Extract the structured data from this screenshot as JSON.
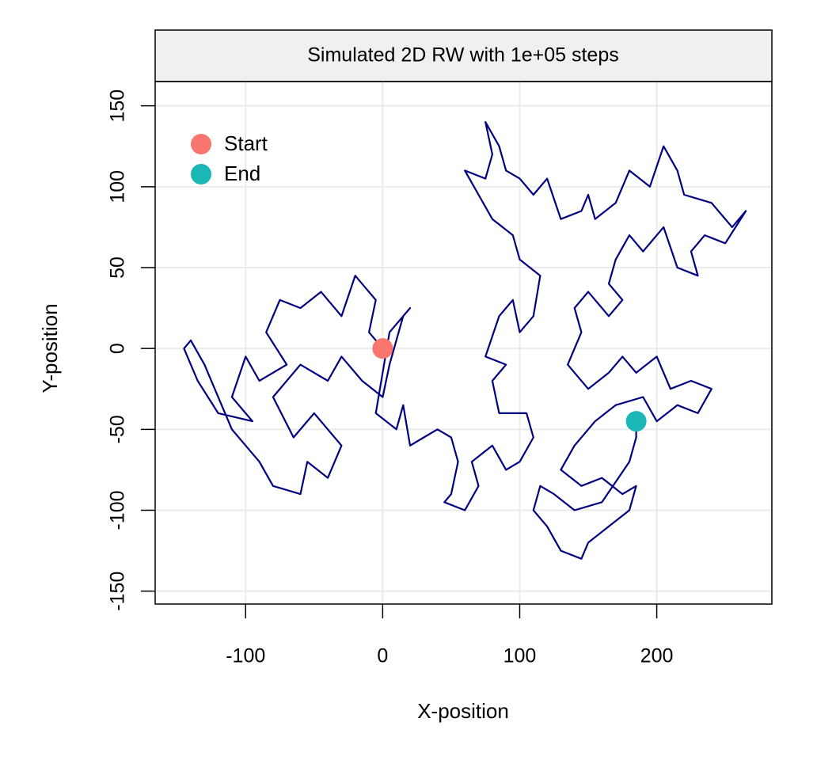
{
  "chart_data": {
    "type": "line",
    "title": "Simulated 2D RW with 1e+05 steps",
    "xlabel": "X-position",
    "ylabel": "Y-position",
    "xlim": [
      -166,
      284
    ],
    "ylim": [
      -158,
      165
    ],
    "xticks": [
      -100,
      0,
      100,
      200
    ],
    "yticks": [
      -150,
      -100,
      -50,
      0,
      50,
      100,
      150
    ],
    "grid": true,
    "legend": "top-left",
    "series": [
      {
        "color": "#000080",
        "x": [
          0,
          -10,
          -5,
          -20,
          -30,
          -45,
          -60,
          -75,
          -85,
          -70,
          -90,
          -100,
          -110,
          -95,
          -120,
          -135,
          -145,
          -140,
          -130,
          -110,
          -90,
          -80,
          -60,
          -55,
          -40,
          -30,
          -50,
          -65,
          -80,
          -60,
          -40,
          -30,
          -15,
          0,
          5,
          15,
          20,
          5,
          -5,
          10,
          15,
          20,
          30,
          40,
          50,
          55,
          50,
          45,
          60,
          70,
          65,
          80,
          90,
          100,
          110,
          105,
          85,
          80,
          90,
          75,
          85,
          95,
          100,
          110,
          115,
          100,
          95,
          80,
          70,
          60,
          75,
          80,
          75,
          85,
          90,
          100,
          110,
          120,
          130,
          145,
          150,
          155,
          170,
          180,
          195,
          205,
          215,
          220,
          240,
          255,
          265,
          250,
          235,
          225,
          230,
          215,
          205,
          190,
          180,
          170,
          165,
          175,
          165,
          150,
          140,
          145,
          135,
          150,
          165,
          175,
          185,
          200,
          210,
          225,
          240,
          230,
          215,
          200,
          190,
          170,
          155,
          140,
          130,
          145,
          160,
          175,
          185,
          180,
          165,
          150,
          145,
          130,
          120,
          110,
          115,
          125,
          140,
          160,
          180,
          185,
          185
        ],
        "y": [
          0,
          10,
          30,
          45,
          20,
          35,
          25,
          30,
          10,
          -10,
          -20,
          -5,
          -30,
          -45,
          -40,
          -20,
          0,
          5,
          -10,
          -50,
          -70,
          -85,
          -90,
          -70,
          -80,
          -60,
          -40,
          -55,
          -30,
          -10,
          -20,
          -5,
          -20,
          -30,
          -10,
          20,
          25,
          10,
          -40,
          -50,
          -35,
          -60,
          -55,
          -50,
          -55,
          -70,
          -90,
          -95,
          -100,
          -85,
          -70,
          -60,
          -75,
          -70,
          -55,
          -40,
          -40,
          -20,
          -10,
          -5,
          20,
          30,
          10,
          20,
          45,
          55,
          70,
          80,
          95,
          110,
          105,
          120,
          140,
          125,
          110,
          105,
          95,
          105,
          80,
          85,
          95,
          80,
          90,
          110,
          100,
          125,
          110,
          95,
          90,
          75,
          85,
          65,
          70,
          60,
          45,
          50,
          75,
          60,
          70,
          55,
          40,
          30,
          20,
          35,
          25,
          10,
          -10,
          -25,
          -15,
          -5,
          -15,
          -5,
          -25,
          -20,
          -25,
          -40,
          -35,
          -45,
          -30,
          -35,
          -45,
          -60,
          -75,
          -85,
          -80,
          -90,
          -85,
          -100,
          -110,
          -120,
          -130,
          -125,
          -110,
          -100,
          -85,
          -90,
          -100,
          -95,
          -70,
          -55,
          -45
        ]
      }
    ],
    "points": [
      {
        "name": "Start",
        "color": "#f8766d",
        "x": [
          0
        ],
        "y": [
          0
        ]
      },
      {
        "name": "End",
        "color": "#1bb6b6",
        "x": [
          185
        ],
        "y": [
          -45
        ]
      }
    ]
  }
}
